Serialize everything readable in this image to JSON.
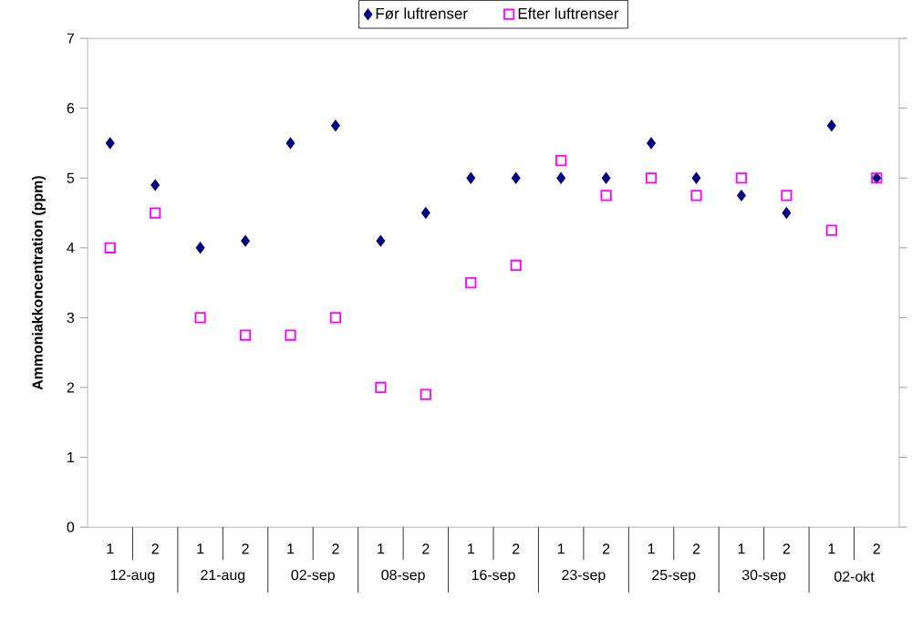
{
  "chart_data": {
    "type": "scatter",
    "ylabel": "Ammoniakkoncentration (ppm)",
    "categories": [
      "1",
      "2",
      "1",
      "2",
      "1",
      "2",
      "1",
      "2",
      "1",
      "2",
      "1",
      "2",
      "1",
      "2",
      "1",
      "2",
      "1",
      "2"
    ],
    "annotations": [
      "12-aug",
      "21-aug",
      "02-sep",
      "08-sep",
      "16-sep",
      "23-sep",
      "25-sep",
      "30-sep",
      "02-okt"
    ],
    "ylim": [
      0,
      7
    ],
    "yticks": [
      0,
      1,
      2,
      3,
      4,
      5,
      6,
      7
    ],
    "legend": "top",
    "series": [
      {
        "name": "Før luftrenser",
        "color": "#000080",
        "marker": "diamond",
        "values": [
          5.5,
          4.9,
          4.0,
          4.1,
          5.5,
          5.75,
          4.1,
          4.5,
          5.0,
          5.0,
          5.0,
          5.0,
          5.5,
          5.0,
          4.75,
          4.5,
          5.75,
          5.0
        ]
      },
      {
        "name": "Efter luftrenser",
        "color": "#ff00ff",
        "marker": "square",
        "values": [
          4.0,
          4.5,
          3.0,
          2.75,
          2.75,
          3.0,
          2.0,
          1.9,
          3.5,
          3.75,
          5.25,
          4.75,
          5.0,
          4.75,
          5.0,
          4.75,
          4.25,
          5.0
        ]
      }
    ]
  }
}
